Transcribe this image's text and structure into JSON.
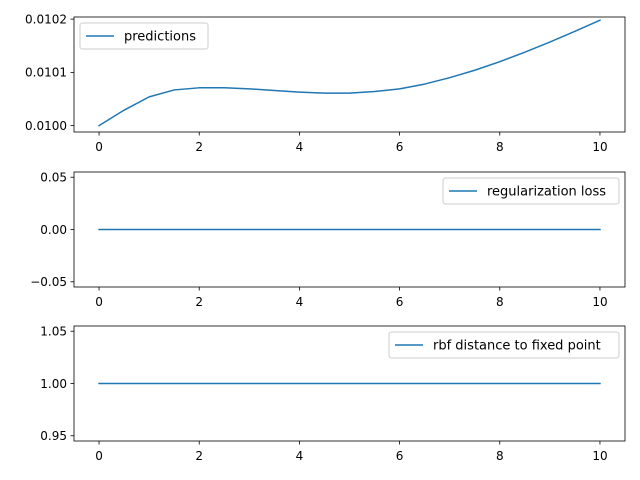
{
  "chart_data": [
    {
      "type": "line",
      "xlim": [
        -0.5,
        10.5
      ],
      "ylim": [
        0.009988,
        0.010204
      ],
      "xticks": [
        0,
        2,
        4,
        6,
        8,
        10
      ],
      "xtick_labels": [
        "0",
        "2",
        "4",
        "6",
        "8",
        "10"
      ],
      "yticks": [
        0.01,
        0.0101,
        0.0102
      ],
      "ytick_labels": [
        "0.0100",
        "0.0101",
        "0.0102"
      ],
      "legend_placement": "upper left",
      "grid": false,
      "series": [
        {
          "name": "predictions",
          "color": "#1f77b4",
          "x": [
            0,
            0.5,
            1,
            1.5,
            2,
            2.5,
            3,
            3.5,
            4,
            4.5,
            5,
            5.5,
            6,
            6.5,
            7,
            7.5,
            8,
            8.5,
            9,
            9.5,
            10
          ],
          "y": [
            0.01,
            0.010029,
            0.010054,
            0.010067,
            0.010071,
            0.010071,
            0.010069,
            0.010066,
            0.010063,
            0.010061,
            0.010061,
            0.010064,
            0.010069,
            0.010078,
            0.01009,
            0.010104,
            0.01012,
            0.010138,
            0.010157,
            0.010177,
            0.010198
          ]
        }
      ]
    },
    {
      "type": "line",
      "xlim": [
        -0.5,
        10.5
      ],
      "ylim": [
        -0.055,
        0.055
      ],
      "xticks": [
        0,
        2,
        4,
        6,
        8,
        10
      ],
      "xtick_labels": [
        "0",
        "2",
        "4",
        "6",
        "8",
        "10"
      ],
      "yticks": [
        -0.05,
        0.0,
        0.05
      ],
      "ytick_labels": [
        "−0.05",
        "0.00",
        "0.05"
      ],
      "legend_placement": "upper right",
      "grid": false,
      "series": [
        {
          "name": "regularization loss",
          "color": "#1f77b4",
          "x": [
            0,
            10
          ],
          "y": [
            0.0,
            0.0
          ]
        }
      ]
    },
    {
      "type": "line",
      "xlim": [
        -0.5,
        10.5
      ],
      "ylim": [
        0.945,
        1.055
      ],
      "xticks": [
        0,
        2,
        4,
        6,
        8,
        10
      ],
      "xtick_labels": [
        "0",
        "2",
        "4",
        "6",
        "8",
        "10"
      ],
      "yticks": [
        0.95,
        1.0,
        1.05
      ],
      "ytick_labels": [
        "0.95",
        "1.00",
        "1.05"
      ],
      "legend_placement": "upper right",
      "grid": false,
      "series": [
        {
          "name": "rbf distance to fixed point",
          "color": "#1f77b4",
          "x": [
            0,
            10
          ],
          "y": [
            1.0,
            1.0
          ]
        }
      ]
    }
  ]
}
